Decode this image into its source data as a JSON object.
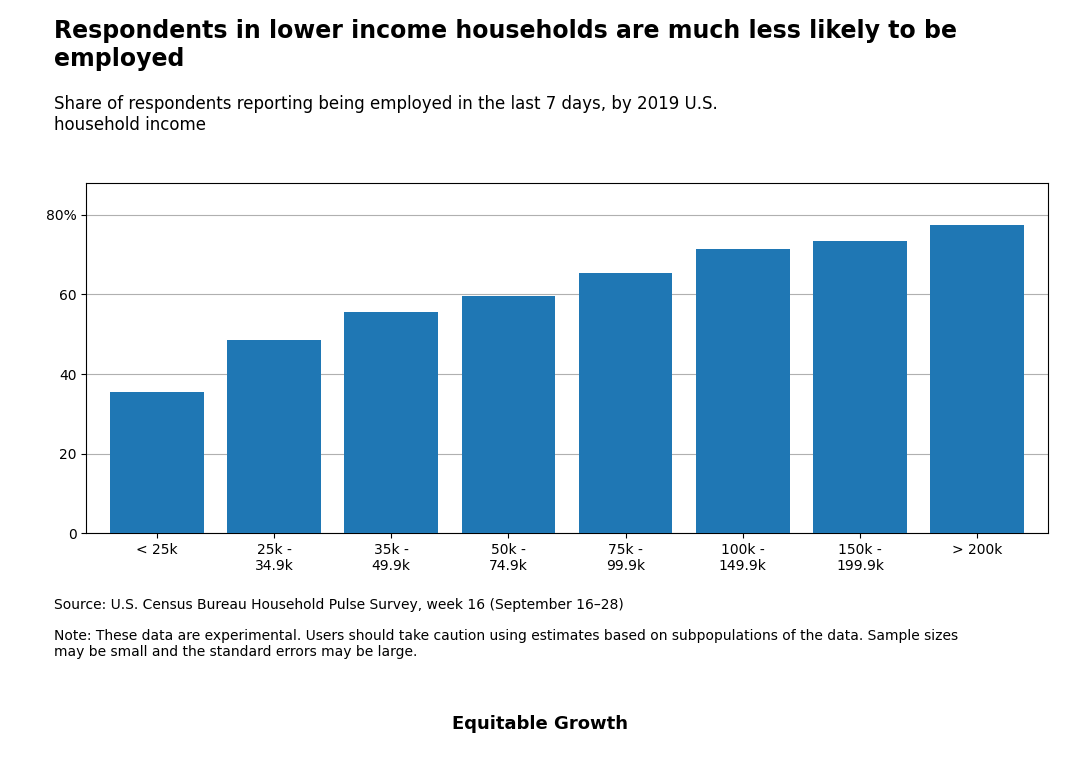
{
  "chart_data": {
    "type": "bar",
    "title": "Respondents in lower income households are much less likely to be\nemployed",
    "subtitle": "Share of respondents reporting being employed in the last 7 days, by 2019 U.S.\nhousehold income",
    "categories": [
      "< 25k",
      "25k -\n34.9k",
      "35k -\n49.9k",
      "50k -\n74.9k",
      "75k -\n99.9k",
      "100k -\n149.9k",
      "150k -\n199.9k",
      "> 200k"
    ],
    "values": [
      35.5,
      48.5,
      55.5,
      59.5,
      65.5,
      71.5,
      73.5,
      77.5
    ],
    "ylim": [
      0,
      88
    ],
    "yticks": [
      0,
      20,
      40,
      60,
      {
        "value": 80,
        "label": "80%"
      }
    ],
    "grid": true,
    "source": "Source: U.S. Census Bureau Household Pulse Survey, week 16 (September 16–28)",
    "note": "Note: These data are experimental. Users should take caution using estimates based on subpopulations of the data. Sample sizes\nmay be small and the standard errors may be large.",
    "logo": "Equitable Growth"
  }
}
